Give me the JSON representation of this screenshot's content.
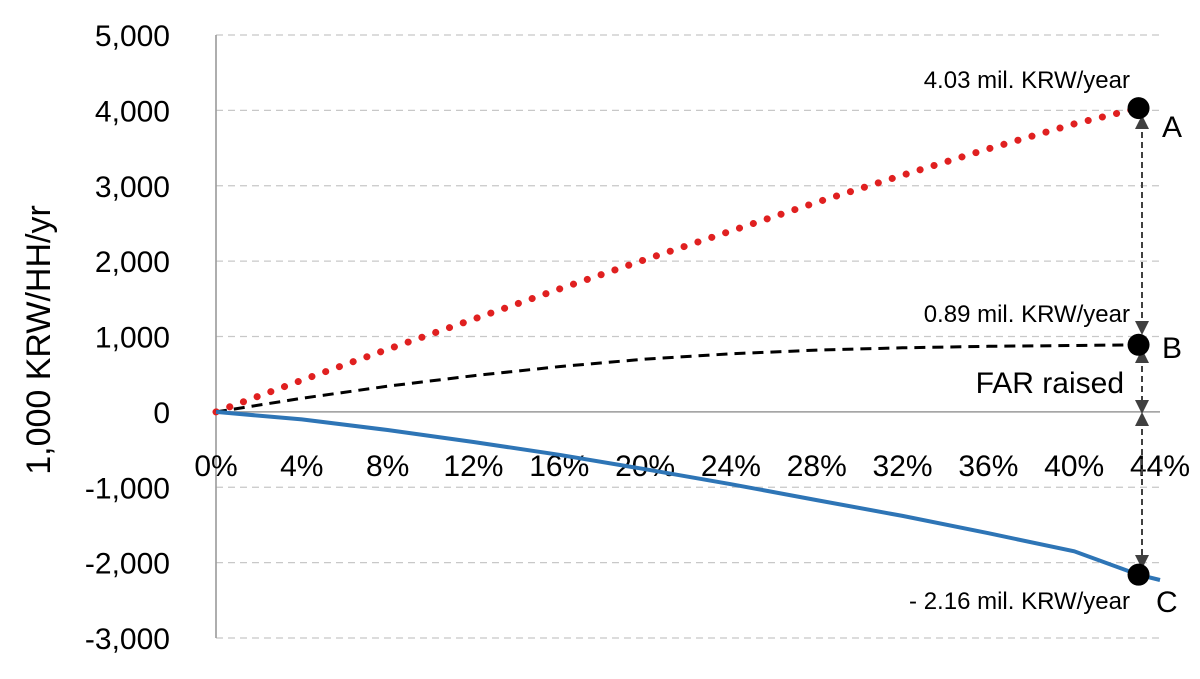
{
  "chart_data": {
    "type": "line",
    "title": "",
    "xlabel": "",
    "ylabel": "1,000 KRW/HH/yr",
    "xlim": [
      0,
      44
    ],
    "ylim": [
      -3000,
      5000
    ],
    "x_ticks": [
      0,
      4,
      8,
      12,
      16,
      20,
      24,
      28,
      32,
      36,
      40,
      44
    ],
    "x_tick_labels": [
      "0%",
      "4%",
      "8%",
      "12%",
      "16%",
      "20%",
      "24%",
      "28%",
      "32%",
      "36%",
      "40%",
      "44%"
    ],
    "y_ticks": [
      -3000,
      -2000,
      -1000,
      0,
      1000,
      2000,
      3000,
      4000,
      5000
    ],
    "y_tick_labels": [
      "-3,000",
      "-2,000",
      "-1,000",
      "0",
      "1,000",
      "2,000",
      "3,000",
      "4,000",
      "5,000"
    ],
    "grid": true,
    "series": [
      {
        "name": "A",
        "style": "dotted",
        "color": "#e02020",
        "x": [
          0,
          4,
          8,
          12,
          16,
          20,
          24,
          28,
          32,
          36,
          40,
          43
        ],
        "y": [
          0,
          420,
          830,
          1230,
          1630,
          2020,
          2400,
          2780,
          3140,
          3490,
          3820,
          4030
        ]
      },
      {
        "name": "B",
        "style": "dashed",
        "color": "#000000",
        "x": [
          0,
          4,
          8,
          12,
          16,
          20,
          24,
          28,
          32,
          36,
          40,
          43
        ],
        "y": [
          0,
          180,
          340,
          480,
          600,
          700,
          770,
          820,
          850,
          870,
          880,
          890
        ]
      },
      {
        "name": "C",
        "style": "solid",
        "color": "#2e75b6",
        "x": [
          0,
          4,
          8,
          12,
          16,
          20,
          24,
          28,
          32,
          36,
          40,
          43,
          44
        ],
        "y": [
          0,
          -100,
          -240,
          -400,
          -570,
          -760,
          -960,
          -1170,
          -1380,
          -1610,
          -1850,
          -2160,
          -2230
        ]
      }
    ],
    "markers": [
      {
        "label": "A",
        "x": 43,
        "y": 4030,
        "annotation": "4.03 mil. KRW/year"
      },
      {
        "label": "B",
        "x": 43,
        "y": 890,
        "annotation": "0.89 mil. KRW/year"
      },
      {
        "label": "C",
        "x": 43,
        "y": -2160,
        "annotation": "- 2.16 mil. KRW/year"
      }
    ],
    "annotations": [
      "FAR raised"
    ]
  }
}
